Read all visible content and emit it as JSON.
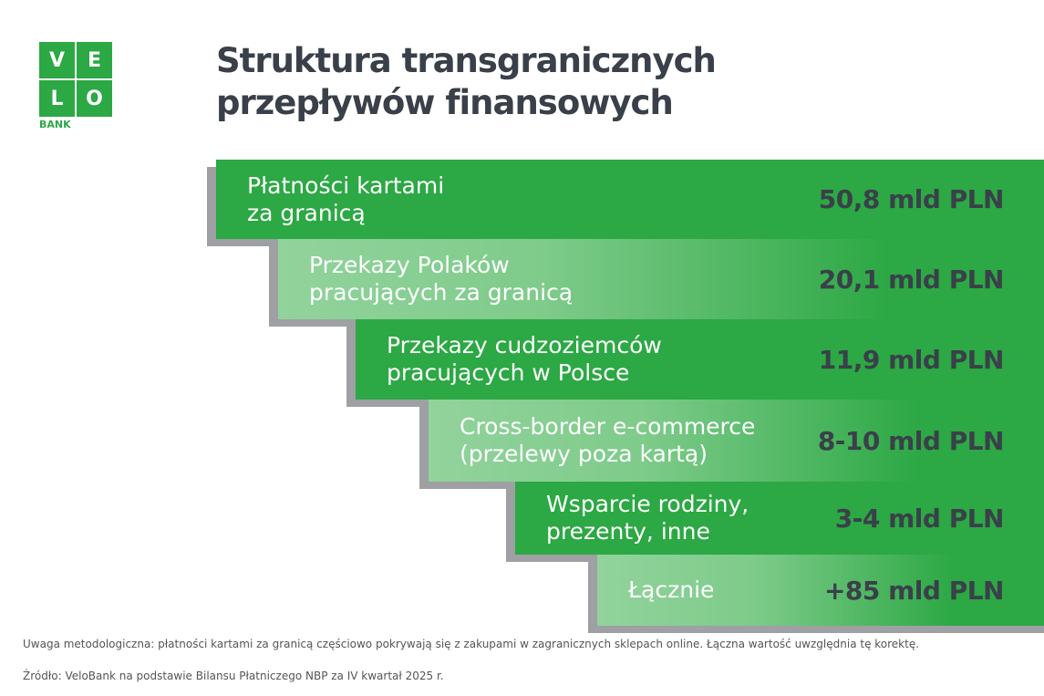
{
  "logo": {
    "letters": [
      "V",
      "E",
      "L",
      "O"
    ],
    "bank": "BANK"
  },
  "title": {
    "line1": "Struktura transgranicznych",
    "line2": "przepływów finansowych"
  },
  "colors": {
    "green": "#2ca844",
    "light_green": "#92d39c",
    "shadow": "#9ea0a3",
    "text_dark": "#3a4049"
  },
  "chart_data": {
    "type": "table",
    "title": "Struktura transgranicznych przepływów finansowych",
    "unit": "mld PLN",
    "rows": [
      {
        "label": "Płatności kartami\nza granicą",
        "value_label": "50,8 mld PLN",
        "value": 50.8
      },
      {
        "label": "Przekazy Polaków\npracujących za granicą",
        "value_label": "20,1 mld PLN",
        "value": 20.1
      },
      {
        "label": "Przekazy cudzoziemców\npracujących w Polsce",
        "value_label": "11,9 mld PLN",
        "value": 11.9
      },
      {
        "label": "Cross-border e-commerce\n(przelewy poza kartą)",
        "value_label": "8-10 mld PLN",
        "value": [
          8,
          10
        ]
      },
      {
        "label": "Wsparcie rodziny,\nprezenty, inne",
        "value_label": "3-4 mld PLN",
        "value": [
          3,
          4
        ]
      },
      {
        "label": "Łącznie",
        "value_label": "+85 mld PLN",
        "value": 85
      }
    ]
  },
  "footer": {
    "note": "Uwaga metodologiczna: płatności kartami za granicą częściowo pokrywają się z zakupami w zagranicznych sklepach online. Łączna wartość uwzględnia tę korektę.",
    "source": "Źródło: VeloBank na podstawie Bilansu Płatniczego NBP za IV kwartał 2025 r."
  }
}
